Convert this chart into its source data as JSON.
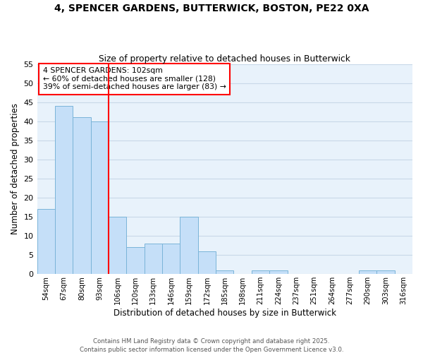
{
  "title": "4, SPENCER GARDENS, BUTTERWICK, BOSTON, PE22 0XA",
  "subtitle": "Size of property relative to detached houses in Butterwick",
  "xlabel": "Distribution of detached houses by size in Butterwick",
  "ylabel": "Number of detached properties",
  "bar_labels": [
    "54sqm",
    "67sqm",
    "80sqm",
    "93sqm",
    "106sqm",
    "120sqm",
    "133sqm",
    "146sqm",
    "159sqm",
    "172sqm",
    "185sqm",
    "198sqm",
    "211sqm",
    "224sqm",
    "237sqm",
    "251sqm",
    "264sqm",
    "277sqm",
    "290sqm",
    "303sqm",
    "316sqm"
  ],
  "bar_values": [
    17,
    44,
    41,
    40,
    15,
    7,
    8,
    8,
    15,
    6,
    1,
    0,
    1,
    1,
    0,
    0,
    0,
    0,
    1,
    1,
    0
  ],
  "bar_color": "#c5dff8",
  "bar_edge_color": "#7ab4d8",
  "grid_color": "#c8d8e8",
  "background_color": "#e8f2fb",
  "annotation_line1": "4 SPENCER GARDENS: 102sqm",
  "annotation_line2": "← 60% of detached houses are smaller (128)",
  "annotation_line3": "39% of semi-detached houses are larger (83) →",
  "ylim": [
    0,
    55
  ],
  "yticks": [
    0,
    5,
    10,
    15,
    20,
    25,
    30,
    35,
    40,
    45,
    50,
    55
  ],
  "footer1": "Contains HM Land Registry data © Crown copyright and database right 2025.",
  "footer2": "Contains public sector information licensed under the Open Government Licence v3.0."
}
